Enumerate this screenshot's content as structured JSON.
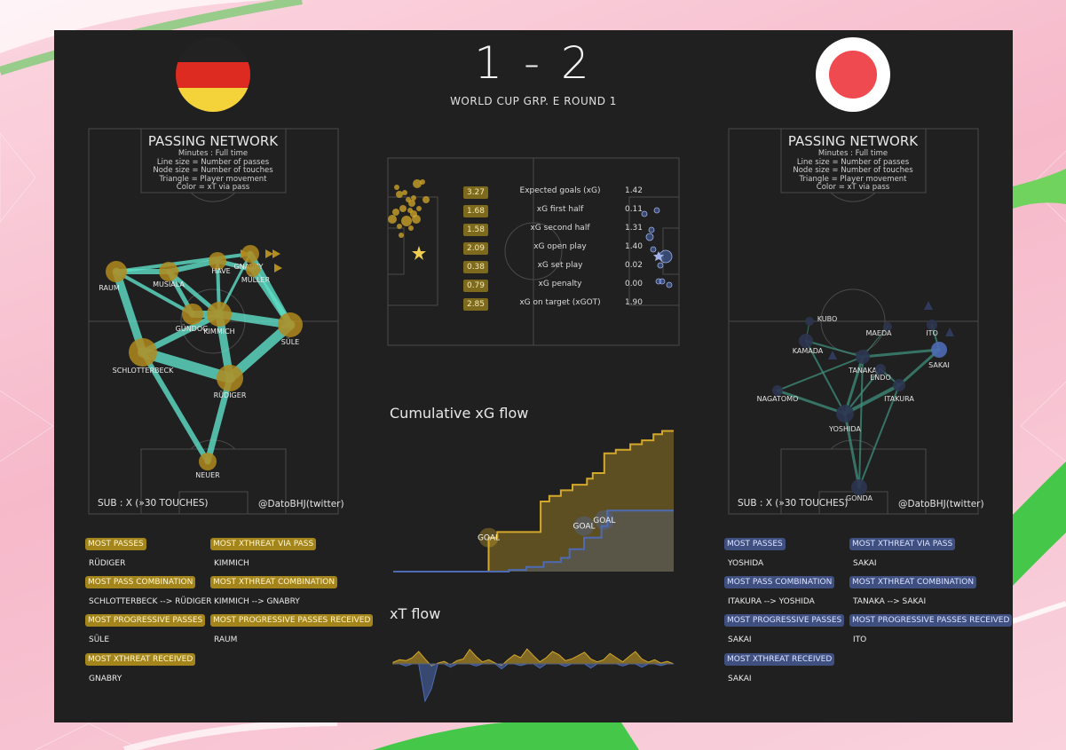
{
  "header": {
    "score": "1 - 2",
    "subtitle": "WORLD CUP GRP. E ROUND 1"
  },
  "colors": {
    "home": "#d4a82a",
    "away": "#4d6bb5",
    "pass_line": "#5fe0c8",
    "board": "#202020",
    "germany_flag": [
      "#222222",
      "#dd2b22",
      "#f3d23a"
    ],
    "japan_flag": [
      "#ffffff",
      "#ef4a4f"
    ]
  },
  "passing_network": {
    "title": "PASSING NETWORK",
    "lines": [
      "Minutes : Full time",
      "Line size = Number of passes",
      "Node size = Number of touches",
      "Triangle = Player movement",
      "Color = xT via pass"
    ]
  },
  "home": {
    "team_icon": "germany-flag",
    "footer_left": "SUB : X (»30 TOUCHES)",
    "footer_right": "@DatoBHJ(twitter)",
    "players": [
      "RAUM",
      "MUSIALA",
      "HAVERTZ",
      "GNABRY",
      "MÜLLER",
      "GÜNDOGAN",
      "KIMMICH",
      "SÜLE",
      "SCHLOTTERBECK",
      "RÜDIGER",
      "NEUER"
    ],
    "labels": {
      "havertz": "HAVE",
      "gundogan": "GÜNDOG"
    },
    "stats": [
      {
        "label": "MOST PASSES",
        "value": "RÜDIGER"
      },
      {
        "label": "MOST XTHREAT VIA PASS",
        "value": "KIMMICH"
      },
      {
        "label": "MOST PASS COMBINATION",
        "value": "SCHLOTTERBECK --> RÜDIGER"
      },
      {
        "label": "MOST XTHREAT COMBINATION",
        "value": "KIMMICH --> GNABRY"
      },
      {
        "label": "MOST PROGRESSIVE PASSES",
        "value": "SÜLE"
      },
      {
        "label": "MOST PROGRESSIVE PASSES RECEIVED",
        "value": "RAUM"
      },
      {
        "label": "MOST XTHREAT RECEIVED",
        "value": "GNABRY"
      }
    ]
  },
  "away": {
    "team_icon": "japan-flag",
    "footer_left": "SUB : X (»30 TOUCHES)",
    "footer_right": "@DatoBHJ(twitter)",
    "players": [
      "KUBO",
      "MAEDA",
      "ITO",
      "KAMADA",
      "TANAKA",
      "ENDO",
      "SAKAI",
      "NAGATOMO",
      "ITAKURA",
      "YOSHIDA",
      "GONDA"
    ],
    "stats": [
      {
        "label": "MOST PASSES",
        "value": "YOSHIDA"
      },
      {
        "label": "MOST XTHREAT VIA PASS",
        "value": "SAKAI"
      },
      {
        "label": "MOST PASS COMBINATION",
        "value": "ITAKURA --> YOSHIDA"
      },
      {
        "label": "MOST XTHREAT COMBINATION",
        "value": "TANAKA --> SAKAI"
      },
      {
        "label": "MOST PROGRESSIVE PASSES",
        "value": "SAKAI"
      },
      {
        "label": "MOST PROGRESSIVE PASSES RECEIVED",
        "value": "ITO"
      },
      {
        "label": "MOST XTHREAT RECEIVED",
        "value": "SAKAI"
      }
    ]
  },
  "chart_data": [
    {
      "type": "table",
      "rows": [
        {
          "label": "Expected goals (xG)",
          "home": "3.27",
          "away": "1.42"
        },
        {
          "label": "xG first half",
          "home": "1.68",
          "away": "0.11"
        },
        {
          "label": "xG second half",
          "home": "1.58",
          "away": "1.31"
        },
        {
          "label": "xG open play",
          "home": "2.09",
          "away": "1.40"
        },
        {
          "label": "xG set play",
          "home": "0.38",
          "away": "0.02"
        },
        {
          "label": "xG penalty",
          "home": "0.79",
          "away": "0.00"
        },
        {
          "label": "xG on target (xGOT)",
          "home": "2.85",
          "away": "1.90"
        }
      ]
    },
    {
      "type": "line",
      "title": "Cumulative xG flow",
      "xlim": [
        0,
        97
      ],
      "ylim": [
        0,
        3.3
      ],
      "series": [
        {
          "color": "#d4a82a",
          "points": [
            [
              0,
              0
            ],
            [
              33,
              0
            ],
            [
              33,
              0.79
            ],
            [
              36,
              0.79
            ],
            [
              36,
              0.92
            ],
            [
              51,
              0.92
            ],
            [
              51,
              1.63
            ],
            [
              54,
              1.63
            ],
            [
              54,
              1.76
            ],
            [
              58,
              1.76
            ],
            [
              58,
              1.89
            ],
            [
              62,
              1.89
            ],
            [
              62,
              2.02
            ],
            [
              67,
              2.02
            ],
            [
              67,
              2.16
            ],
            [
              69,
              2.16
            ],
            [
              69,
              2.29
            ],
            [
              73,
              2.29
            ],
            [
              73,
              2.75
            ],
            [
              77,
              2.75
            ],
            [
              77,
              2.83
            ],
            [
              82,
              2.83
            ],
            [
              82,
              2.96
            ],
            [
              86,
              2.96
            ],
            [
              86,
              3.05
            ],
            [
              90,
              3.05
            ],
            [
              90,
              3.19
            ],
            [
              93,
              3.19
            ],
            [
              93,
              3.27
            ],
            [
              97,
              3.27
            ]
          ]
        },
        {
          "color": "#4d6bb5",
          "points": [
            [
              0,
              0
            ],
            [
              40,
              0
            ],
            [
              40,
              0.04
            ],
            [
              46,
              0.04
            ],
            [
              46,
              0.11
            ],
            [
              52,
              0.11
            ],
            [
              52,
              0.22
            ],
            [
              58,
              0.22
            ],
            [
              58,
              0.32
            ],
            [
              61,
              0.32
            ],
            [
              61,
              0.52
            ],
            [
              66,
              0.52
            ],
            [
              66,
              0.79
            ],
            [
              72,
              0.79
            ],
            [
              72,
              1.06
            ],
            [
              74,
              1.06
            ],
            [
              74,
              1.42
            ],
            [
              97,
              1.42
            ]
          ]
        }
      ],
      "annotations": [
        {
          "text": "GOAL",
          "series": 0,
          "x": 33,
          "y": 0.79
        },
        {
          "text": "GOAL",
          "series": 1,
          "x": 66,
          "y": 1.06
        },
        {
          "text": "GOAL",
          "series": 1,
          "x": 73,
          "y": 1.2
        }
      ]
    },
    {
      "type": "area",
      "title": "xT flow",
      "ylim": [
        -0.9,
        0.5
      ],
      "series": [
        {
          "color": "#d4a82a",
          "values": [
            0.04,
            0.1,
            0.08,
            0.15,
            0.3,
            0.12,
            -0.05,
            0.02,
            0.06,
            -0.02,
            0.08,
            0.12,
            0.35,
            0.18,
            0.05,
            0.1,
            0.02,
            -0.04,
            0.1,
            0.22,
            0.15,
            0.36,
            0.2,
            0.05,
            0.15,
            0.3,
            0.22,
            0.08,
            0.12,
            0.2,
            0.28,
            0.12,
            0.05,
            0.1,
            0.25,
            0.15,
            0.05,
            0.18,
            0.3,
            0.12,
            0.04,
            0.1,
            0.02,
            0.06,
            0.0
          ]
        },
        {
          "color": "#4d6bb5",
          "values": [
            0,
            0,
            -0.05,
            0,
            0,
            -0.9,
            -0.6,
            0,
            0,
            -0.08,
            0,
            0,
            0,
            -0.05,
            0,
            0,
            0,
            -0.12,
            0,
            0,
            -0.04,
            0,
            0,
            -0.1,
            0,
            0,
            0,
            -0.06,
            0,
            0,
            0,
            -0.1,
            0,
            0,
            0,
            0,
            -0.05,
            0,
            0,
            -0.08,
            0,
            0,
            -0.04,
            0,
            0
          ]
        }
      ]
    },
    {
      "type": "scatter",
      "title": "",
      "series": [
        {
          "color": "#d4a82a",
          "shape": "circle",
          "x": [
            6,
            10,
            14,
            18,
            22,
            26,
            30,
            33,
            27,
            20,
            14,
            11,
            28,
            34,
            40,
            16,
            24,
            36,
            30,
            44
          ],
          "y": [
            70,
            62,
            78,
            58,
            72,
            60,
            64,
            70,
            80,
            40,
            42,
            34,
            52,
            30,
            28,
            88,
            48,
            58,
            46,
            48
          ],
          "r": [
            5,
            4,
            3,
            4,
            6,
            3,
            4,
            5,
            3,
            3,
            4,
            3,
            4,
            5,
            3,
            3,
            3,
            3,
            3,
            4
          ]
        },
        {
          "color": "#4d6bb5",
          "shape": "circle",
          "x": [
            290,
            304,
            298,
            296,
            300,
            314,
            308,
            306,
            310,
            318
          ],
          "y": [
            64,
            60,
            82,
            90,
            104,
            112,
            122,
            140,
            140,
            144
          ],
          "r": [
            3,
            3,
            3,
            4,
            3,
            7,
            3,
            3,
            3,
            3
          ]
        }
      ]
    }
  ]
}
